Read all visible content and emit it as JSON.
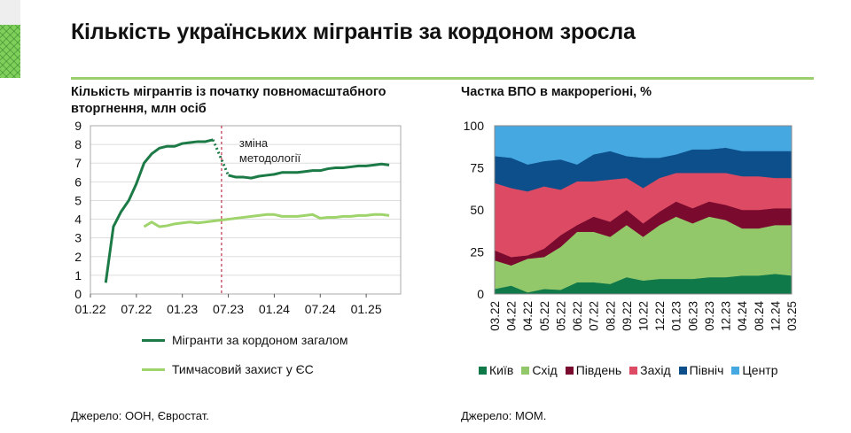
{
  "title": "Кількість українських мігрантів за кордоном зросла",
  "left": {
    "subtitle_line1": "Кількість мігрантів із початку повномасштабного",
    "subtitle_line2": "вторгнення, млн осіб",
    "source": "Джерело: ООН, Євростат."
  },
  "right": {
    "subtitle": "Частка ВПО в макрорегіоні, %",
    "source": "Джерело: МОМ."
  },
  "chart_data": [
    {
      "type": "line",
      "title": "Кількість мігрантів із початку повномасштабного вторгнення, млн осіб",
      "ylim": [
        0,
        9
      ],
      "yticks": [
        0,
        1,
        2,
        3,
        4,
        5,
        6,
        7,
        8,
        9
      ],
      "xticks": [
        "01.22",
        "07.22",
        "01.23",
        "07.23",
        "01.24",
        "07.24",
        "01.25"
      ],
      "xrange": [
        "01.22",
        "05.25"
      ],
      "annotation": {
        "text_line1": "зміна",
        "text_line2": "методології",
        "at": "06.23"
      },
      "legend_position": "bottom",
      "series": [
        {
          "name": "Мігранти за кордоном загалом",
          "color": "#1b7a46",
          "start": "03.22",
          "values": [
            0.6,
            3.6,
            4.4,
            5.0,
            5.9,
            7.0,
            7.5,
            7.8,
            7.9,
            7.9,
            8.05,
            8.1,
            8.15,
            8.15,
            8.25,
            null,
            6.35,
            6.25,
            6.25,
            6.2,
            6.3,
            6.35,
            6.4,
            6.5,
            6.5,
            6.5,
            6.55,
            6.6,
            6.6,
            6.7,
            6.75,
            6.75,
            6.8,
            6.85,
            6.85,
            6.9,
            6.95,
            6.9
          ],
          "dotted_segment": [
            "05.23",
            "07.23"
          ]
        },
        {
          "name": "Тимчасовий захист у ЄС",
          "color": "#9fd46c",
          "start": "08.22",
          "values": [
            3.6,
            3.85,
            3.6,
            3.65,
            3.75,
            3.8,
            3.85,
            3.8,
            3.85,
            3.9,
            3.95,
            4.0,
            4.05,
            4.1,
            4.15,
            4.2,
            4.25,
            4.25,
            4.15,
            4.15,
            4.15,
            4.2,
            4.25,
            4.05,
            4.1,
            4.1,
            4.15,
            4.15,
            4.2,
            4.2,
            4.25,
            4.25,
            4.2
          ]
        }
      ]
    },
    {
      "type": "area",
      "stacked": true,
      "title": "Частка ВПО в макрорегіоні, %",
      "ylim": [
        0,
        100
      ],
      "yticks": [
        0,
        25,
        50,
        75,
        100
      ],
      "categories": [
        "03.22",
        "04.22",
        "04.22",
        "05.22",
        "05.22",
        "06.22",
        "07.22",
        "08.22",
        "09.22",
        "10.22",
        "12.22",
        "01.23",
        "06.23",
        "09.23",
        "12.23",
        "04.24",
        "08.24",
        "12.24",
        "03.25"
      ],
      "legend_position": "bottom",
      "series": [
        {
          "name": "Київ",
          "color": "#10794a",
          "values": [
            3,
            5,
            1,
            3,
            2.5,
            7,
            7,
            6,
            10,
            8,
            9,
            9,
            9,
            10,
            10,
            11,
            11,
            12,
            11
          ]
        },
        {
          "name": "Схід",
          "color": "#93c86a",
          "values": [
            17,
            12,
            20,
            19,
            25.5,
            30,
            30,
            28,
            31,
            26,
            32,
            37,
            33,
            36,
            34,
            28,
            28,
            29,
            30
          ]
        },
        {
          "name": "Південь",
          "color": "#7b0a2f",
          "values": [
            6,
            5,
            2,
            5,
            7,
            4,
            9,
            9,
            9,
            8,
            8,
            9,
            9,
            9,
            9,
            11,
            11,
            10,
            10
          ]
        },
        {
          "name": "Захід",
          "color": "#dc4b63",
          "values": [
            40,
            41,
            38,
            37,
            27,
            26,
            21,
            25,
            19,
            21,
            20,
            17,
            21,
            17,
            19,
            20,
            20,
            18,
            18
          ]
        },
        {
          "name": "Північ",
          "color": "#0d4f8a",
          "values": [
            16,
            18,
            16,
            15,
            18,
            10,
            16,
            17,
            13,
            18,
            12,
            11,
            14,
            14,
            15,
            15,
            15,
            16,
            16
          ]
        },
        {
          "name": "Центр",
          "color": "#46a8e1",
          "values": [
            18,
            19,
            23,
            21,
            20,
            23,
            17,
            15,
            18,
            19,
            19,
            17,
            14,
            14,
            13,
            15,
            15,
            15,
            15
          ]
        }
      ]
    }
  ]
}
